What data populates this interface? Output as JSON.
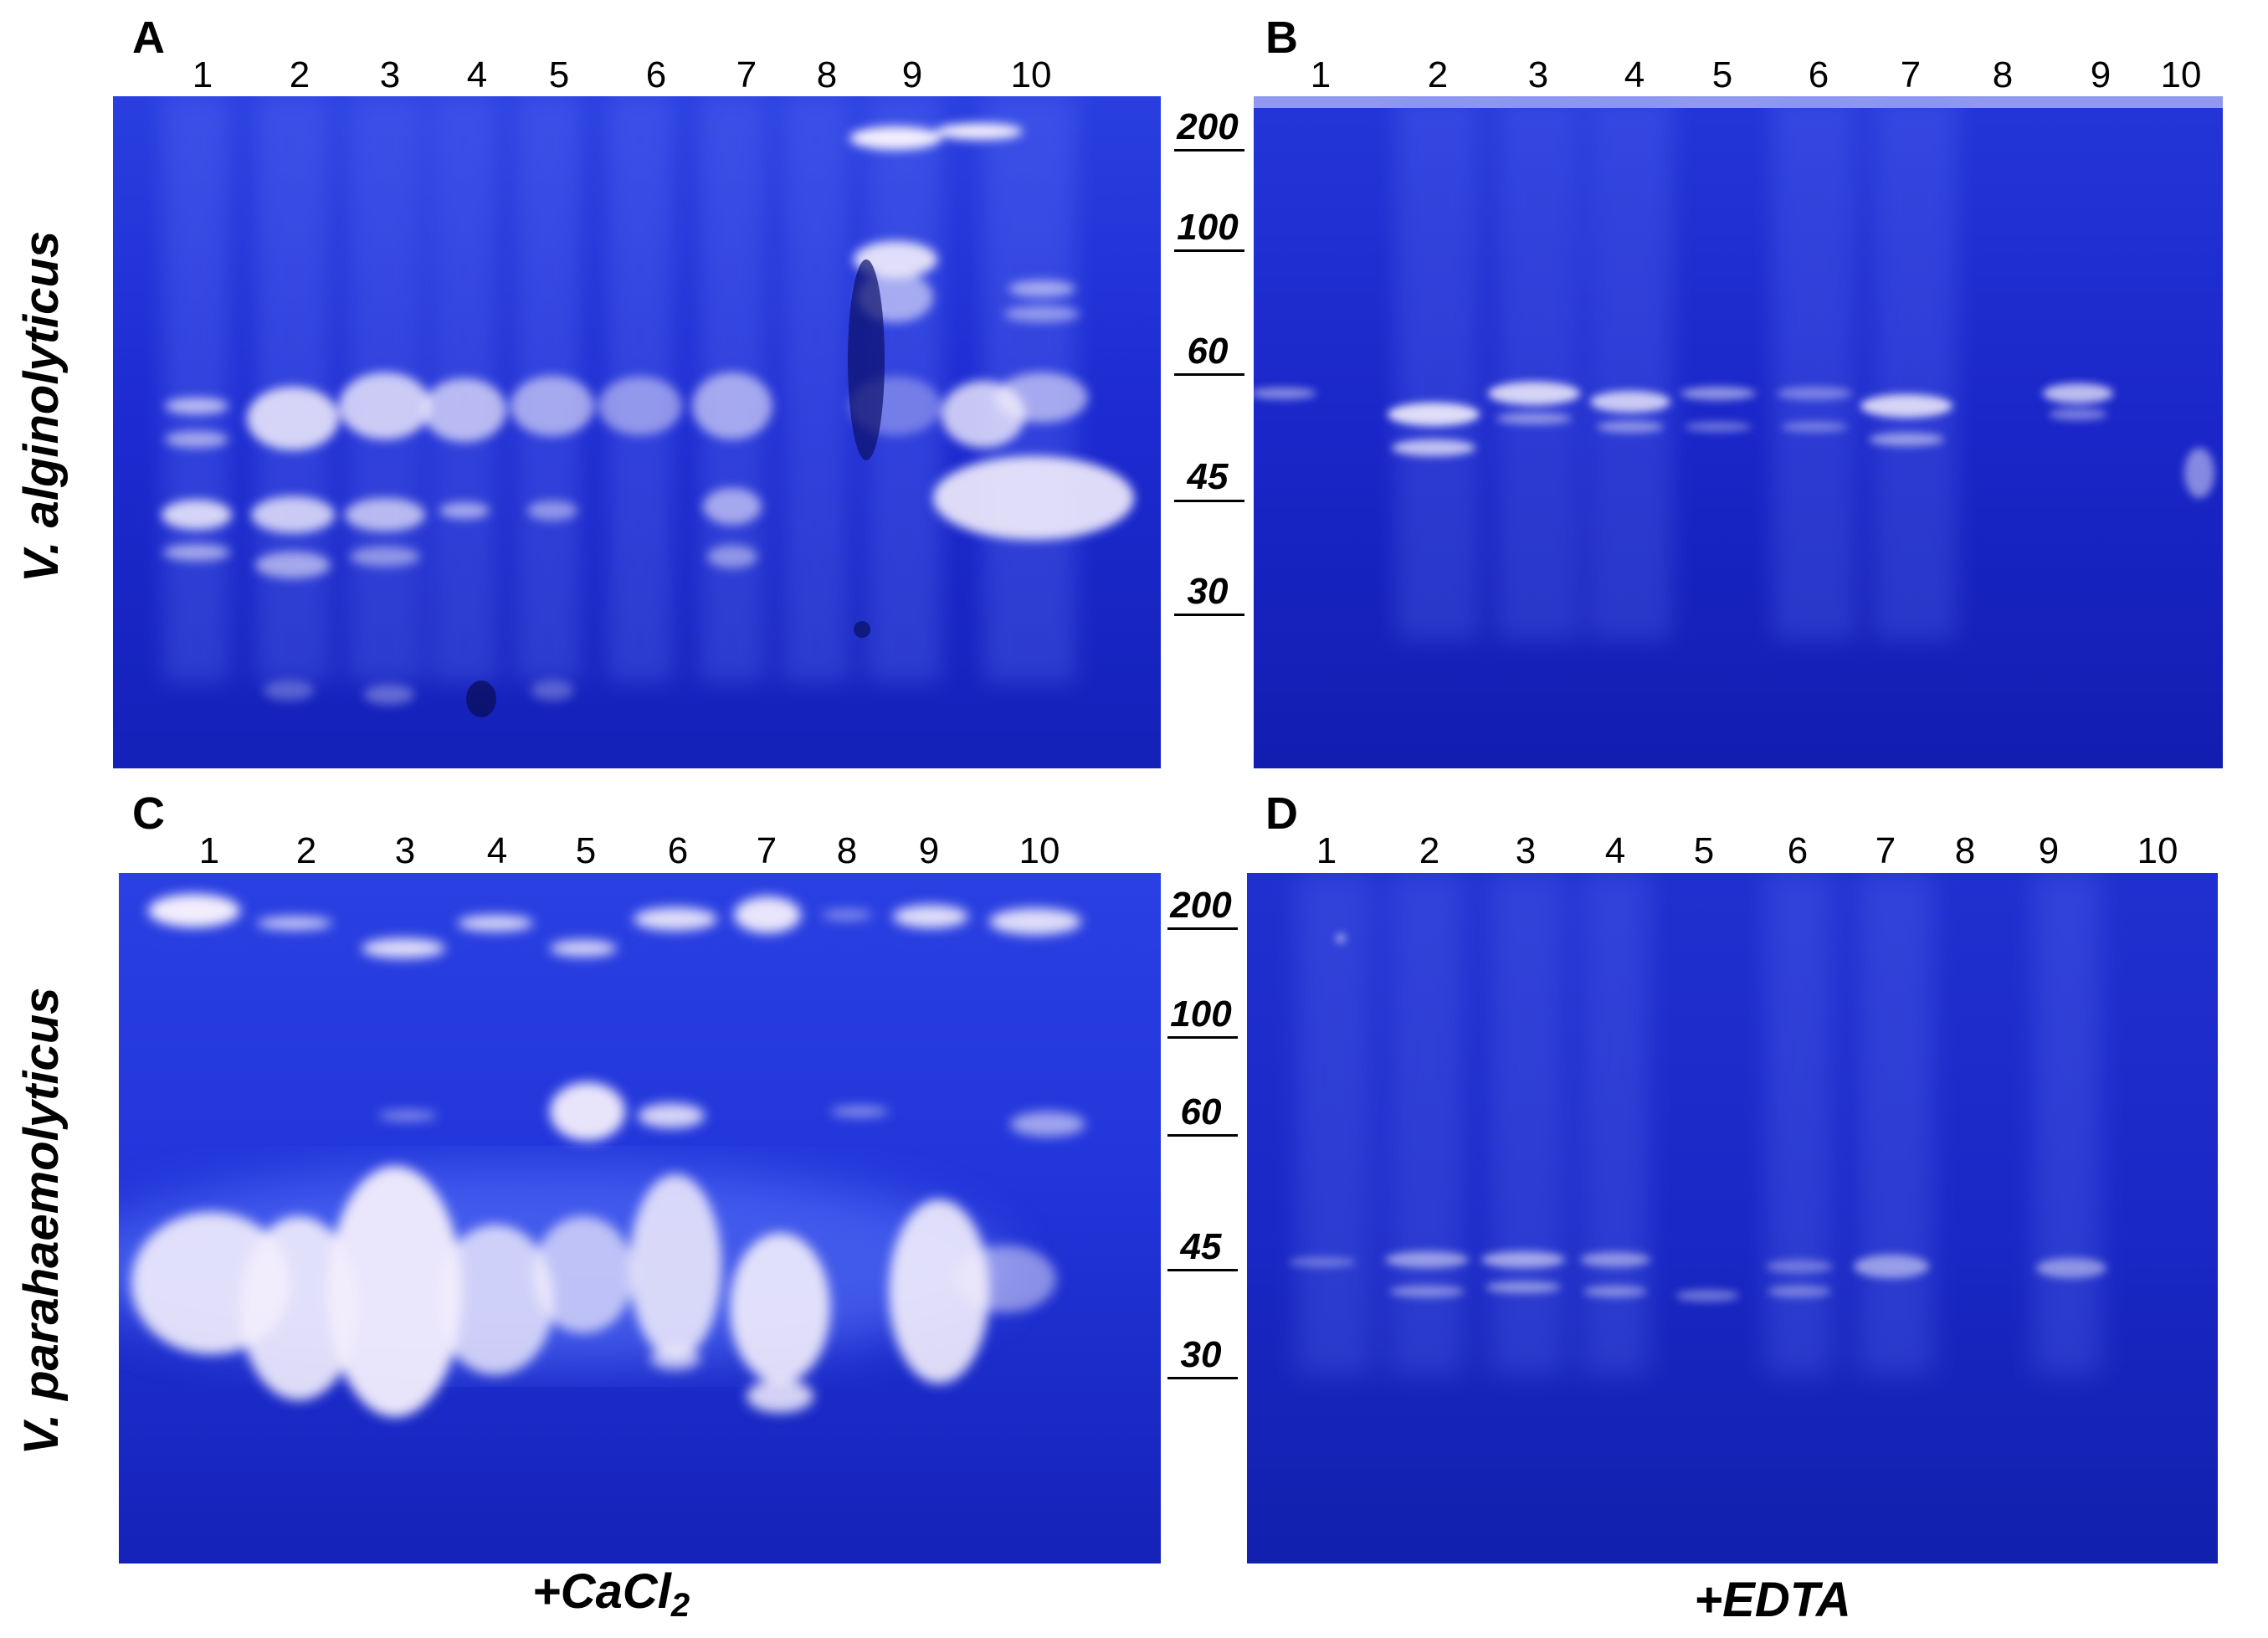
{
  "panels": [
    {
      "letter": "A",
      "lanes": [
        "1",
        "2",
        "3",
        "4",
        "5",
        "6",
        "7",
        "8",
        "9",
        "10"
      ]
    },
    {
      "letter": "B",
      "lanes": [
        "1",
        "2",
        "3",
        "4",
        "5",
        "6",
        "7",
        "8",
        "9",
        "10"
      ]
    },
    {
      "letter": "C",
      "lanes": [
        "1",
        "2",
        "3",
        "4",
        "5",
        "6",
        "7",
        "8",
        "9",
        "10"
      ]
    },
    {
      "letter": "D",
      "lanes": [
        "1",
        "2",
        "3",
        "4",
        "5",
        "6",
        "7",
        "8",
        "9",
        "10"
      ]
    }
  ],
  "mw_markers_top": [
    "200",
    "100",
    "60",
    "45",
    "30"
  ],
  "mw_markers_bottom": [
    "200",
    "100",
    "60",
    "45",
    "30"
  ],
  "row_labels": [
    "V. alginolyticus",
    "V. parahaemolyticus"
  ],
  "column_labels": {
    "cacl2_prefix": "+CaCl",
    "cacl2_sub": "2",
    "edta": "+EDTA"
  },
  "colors": {
    "gel_blue": "#1a23c4",
    "gel_dark": "#0c1494",
    "band": "#f3eefc"
  }
}
